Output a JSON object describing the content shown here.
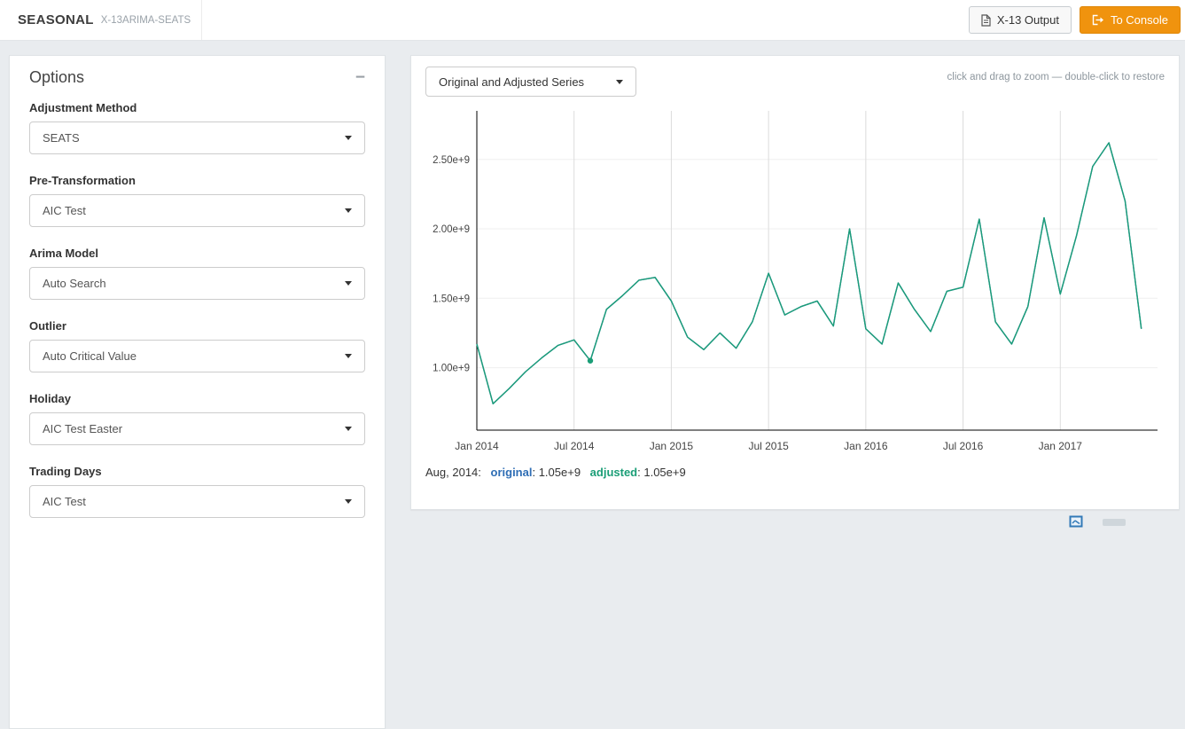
{
  "header": {
    "title": "SEASONAL",
    "subtitle": "X-13ARIMA-SEATS",
    "x13_output_button": "X-13 Output",
    "to_console_button": "To Console"
  },
  "icons": {
    "x13_output": "document-icon",
    "to_console": "sign-out-icon",
    "options_collapse": "minus-icon",
    "dropdowns": "caret-down-icon"
  },
  "options": {
    "title": "Options",
    "fields": [
      {
        "label": "Adjustment Method",
        "value": "SEATS"
      },
      {
        "label": "Pre-Transformation",
        "value": "AIC Test"
      },
      {
        "label": "Arima Model",
        "value": "Auto Search"
      },
      {
        "label": "Outlier",
        "value": "Auto Critical Value"
      },
      {
        "label": "Holiday",
        "value": "AIC Test Easter"
      },
      {
        "label": "Trading Days",
        "value": "AIC Test"
      }
    ]
  },
  "chart_panel": {
    "series_selector": "Original and Adjusted Series",
    "zoom_hint": "click and drag to zoom — double-click to restore",
    "status": {
      "date": "Aug, 2014:",
      "original_label": "original",
      "original_value": ": 1.05e+9",
      "adjusted_label": "adjusted",
      "adjusted_value": ": 1.05e+9"
    }
  },
  "chart_data": {
    "type": "line",
    "title": "",
    "xlabel": "",
    "ylabel": "",
    "x_unit": "month",
    "x_labels": [
      "Jan 2014",
      "Feb 2014",
      "Mar 2014",
      "Apr 2014",
      "May 2014",
      "Jun 2014",
      "Jul 2014",
      "Aug 2014",
      "Sep 2014",
      "Oct 2014",
      "Nov 2014",
      "Dec 2014",
      "Jan 2015",
      "Feb 2015",
      "Mar 2015",
      "Apr 2015",
      "May 2015",
      "Jun 2015",
      "Jul 2015",
      "Aug 2015",
      "Sep 2015",
      "Oct 2015",
      "Nov 2015",
      "Dec 2015",
      "Jan 2016",
      "Feb 2016",
      "Mar 2016",
      "Apr 2016",
      "May 2016",
      "Jun 2016",
      "Jul 2016",
      "Aug 2016",
      "Sep 2016",
      "Oct 2016",
      "Nov 2016",
      "Dec 2016",
      "Jan 2017",
      "Feb 2017",
      "Mar 2017",
      "Apr 2017",
      "May 2017",
      "Jun 2017"
    ],
    "x_tick_indices": [
      0,
      6,
      12,
      18,
      24,
      30,
      36
    ],
    "x_tick_labels": [
      "Jan 2014",
      "Jul 2014",
      "Jan 2015",
      "Jul 2015",
      "Jan 2016",
      "Jul 2016",
      "Jan 2017"
    ],
    "x_domain_months": 42,
    "y_tick_values": [
      1000000000.0,
      1500000000.0,
      2000000000.0,
      2500000000.0
    ],
    "y_tick_labels": [
      "1.00e+9",
      "1.50e+9",
      "2.00e+9",
      "2.50e+9"
    ],
    "ylim": [
      550000000.0,
      2850000000.0
    ],
    "grid": true,
    "legend_position": "bottom-status-bar",
    "series": [
      {
        "name": "original",
        "color": "#2f6eb5",
        "values": [
          1170000000.0,
          740000000.0,
          850000000.0,
          970000000.0,
          1070000000.0,
          1160000000.0,
          1200000000.0,
          1050000000.0,
          1420000000.0,
          1520000000.0,
          1630000000.0,
          1650000000.0,
          1480000000.0,
          1220000000.0,
          1130000000.0,
          1250000000.0,
          1140000000.0,
          1330000000.0,
          1680000000.0,
          1380000000.0,
          1440000000.0,
          1480000000.0,
          1300000000.0,
          2000000000.0,
          1280000000.0,
          1170000000.0,
          1610000000.0,
          1420000000.0,
          1260000000.0,
          1550000000.0,
          1580000000.0,
          2070000000.0,
          1330000000.0,
          1170000000.0,
          1440000000.0,
          2080000000.0,
          1530000000.0,
          1950000000.0,
          2450000000.0,
          2620000000.0,
          2200000000.0,
          1280000000.0
        ]
      },
      {
        "name": "adjusted",
        "color": "#1b9e77",
        "values": [
          1170000000.0,
          740000000.0,
          850000000.0,
          970000000.0,
          1070000000.0,
          1160000000.0,
          1200000000.0,
          1050000000.0,
          1420000000.0,
          1520000000.0,
          1630000000.0,
          1650000000.0,
          1480000000.0,
          1220000000.0,
          1130000000.0,
          1250000000.0,
          1140000000.0,
          1330000000.0,
          1680000000.0,
          1380000000.0,
          1440000000.0,
          1480000000.0,
          1300000000.0,
          2000000000.0,
          1280000000.0,
          1170000000.0,
          1610000000.0,
          1420000000.0,
          1260000000.0,
          1550000000.0,
          1580000000.0,
          2070000000.0,
          1330000000.0,
          1170000000.0,
          1440000000.0,
          2080000000.0,
          1530000000.0,
          1950000000.0,
          2450000000.0,
          2620000000.0,
          2200000000.0,
          1280000000.0
        ]
      }
    ],
    "highlight": {
      "series": "adjusted",
      "index": 7,
      "x_label": "Aug 2014",
      "value": 1050000000.0
    }
  }
}
